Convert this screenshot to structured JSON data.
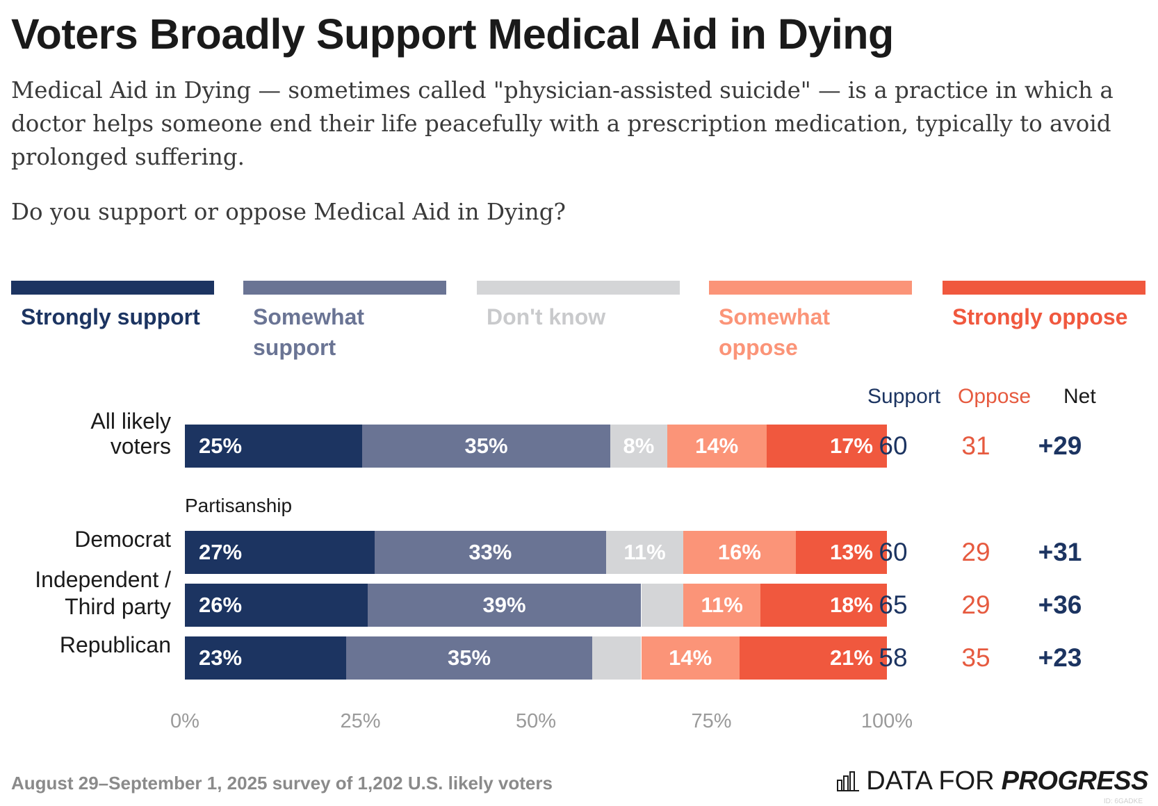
{
  "title": "Voters Broadly Support Medical Aid in Dying",
  "subtitle": "Medical Aid in Dying — sometimes called \"physician-assisted suicide\" — is a practice in which a doctor helps someone end their life peacefully with a prescription medication, typically to avoid prolonged suffering.",
  "question": "Do you support or oppose Medical Aid in Dying?",
  "legend": [
    {
      "label": "Strongly support",
      "color": "#1c3461",
      "text_color": "#1c3461"
    },
    {
      "label": "Somewhat support",
      "color": "#6a7494",
      "text_color": "#6a7494"
    },
    {
      "label": "Don't know",
      "color": "#d4d5d7",
      "text_color": "#c9cacc"
    },
    {
      "label": "Somewhat oppose",
      "color": "#fb9478",
      "text_color": "#fb9478"
    },
    {
      "label": "Strongly oppose",
      "color": "#f0583e",
      "text_color": "#f0583e"
    }
  ],
  "columns": {
    "support": "Support",
    "oppose": "Oppose",
    "net": "Net"
  },
  "section_label": "Partisanship",
  "chart_data": {
    "type": "bar",
    "orientation": "horizontal",
    "stacked": true,
    "categories": [
      "All likely voters",
      "Democrat",
      "Independent / Third party",
      "Republican"
    ],
    "series": [
      {
        "name": "Strongly support",
        "values": [
          25,
          27,
          26,
          23
        ],
        "labels": [
          "25%",
          "27%",
          "26%",
          "23%"
        ]
      },
      {
        "name": "Somewhat support",
        "values": [
          35,
          33,
          39,
          35
        ],
        "labels": [
          "35%",
          "33%",
          "39%",
          "35%"
        ]
      },
      {
        "name": "Don't know",
        "values": [
          8,
          11,
          6,
          7
        ],
        "labels": [
          "8%",
          "11%",
          "",
          ""
        ]
      },
      {
        "name": "Somewhat oppose",
        "values": [
          14,
          16,
          11,
          14
        ],
        "labels": [
          "14%",
          "16%",
          "11%",
          "14%"
        ]
      },
      {
        "name": "Strongly oppose",
        "values": [
          17,
          13,
          18,
          21
        ],
        "labels": [
          "17%",
          "13%",
          "18%",
          "21%"
        ]
      }
    ],
    "support": [
      "60",
      "60",
      "65",
      "58"
    ],
    "oppose": [
      "31",
      "29",
      "29",
      "35"
    ],
    "net": [
      "+29",
      "+31",
      "+36",
      "+23"
    ],
    "x_ticks": [
      "0%",
      "25%",
      "50%",
      "75%",
      "100%"
    ],
    "xlim": [
      0,
      100
    ]
  },
  "row_labels": [
    [
      "All likely",
      "voters"
    ],
    [
      "Democrat"
    ],
    [
      "Independent /",
      "Third party"
    ],
    [
      "Republican"
    ]
  ],
  "footnote": "August 29–September 1, 2025 survey of 1,202 U.S. likely voters",
  "brand": {
    "part1": "DATA FOR",
    "part2": "PROGRESS"
  },
  "chart_id": "ID: 6GADKE",
  "colors": {
    "support": "#1c3461",
    "oppose": "#e65a3f",
    "net": "#1c3461"
  }
}
